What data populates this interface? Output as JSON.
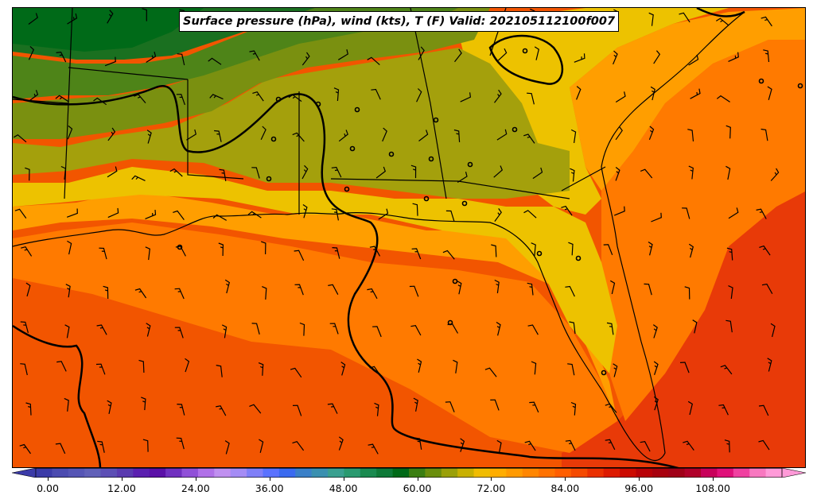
{
  "map": {
    "title": "Surface pressure (hPa), wind (kts), T (F) Valid: 202105112100f007",
    "colors": {
      "ocean_warm": "#f25500",
      "ocean_hot": "#e83a08",
      "orange": "#ff7a00",
      "light_orange": "#ff9e00",
      "amber": "#ffb000",
      "yellow": "#edc200",
      "olive_yellow": "#c5a800",
      "olive": "#a4a00c",
      "olive_green": "#7a9010",
      "green": "#4e8418",
      "dark_green": "#1a7020",
      "deep_green": "#006a18"
    }
  },
  "colorbar": {
    "ticks": [
      "0.00",
      "12.00",
      "24.00",
      "36.00",
      "48.00",
      "60.00",
      "72.00",
      "84.00",
      "96.00",
      "108.00"
    ],
    "colors": [
      "#3b3ba8",
      "#4b4bb0",
      "#5555b5",
      "#6060b8",
      "#5c4fb5",
      "#5a3ab0",
      "#5b20b0",
      "#5a10a8",
      "#7030c0",
      "#9050d8",
      "#b070e8",
      "#c090f0",
      "#a48cf5",
      "#7f7ff8",
      "#5a72ff",
      "#3a6af0",
      "#3a80c8",
      "#3a90b0",
      "#3aa090",
      "#2a9a70",
      "#1a8a50",
      "#0e7a38",
      "#006a18",
      "#3a7e12",
      "#6a8e0c",
      "#9aa008",
      "#c8b000",
      "#f0bc00",
      "#ffad00",
      "#ff9a00",
      "#ff8600",
      "#ff7200",
      "#ff5e00",
      "#f54a00",
      "#ea3000",
      "#dd1a00",
      "#cc0a00",
      "#b80006",
      "#a8000e",
      "#a00018",
      "#b0002a",
      "#c8005a",
      "#e0107a",
      "#f040a0",
      "#f878c0",
      "#ff9ad8"
    ]
  }
}
